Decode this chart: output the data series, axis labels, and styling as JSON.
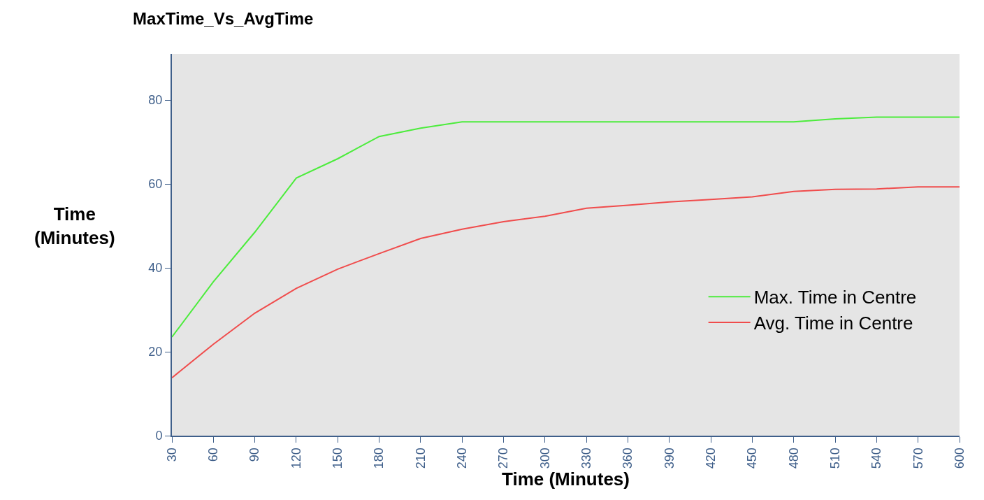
{
  "chart_data": {
    "type": "line",
    "title": "MaxTime_Vs_AvgTime",
    "xlabel": "Time (Minutes)",
    "ylabel": "Time\n(Minutes)",
    "x": [
      30,
      60,
      90,
      120,
      150,
      180,
      210,
      240,
      270,
      300,
      330,
      360,
      390,
      420,
      450,
      480,
      510,
      540,
      570,
      600
    ],
    "xlim": [
      30,
      600
    ],
    "xticks": [
      30,
      60,
      90,
      120,
      150,
      180,
      210,
      240,
      270,
      300,
      330,
      360,
      390,
      420,
      450,
      480,
      510,
      540,
      570,
      600
    ],
    "ylim": [
      0,
      91
    ],
    "yticks": [
      0,
      20,
      40,
      60,
      80
    ],
    "series": [
      {
        "name": "Max. Time in Centre",
        "color": "#4cec3c",
        "values": [
          23.5,
          36.7,
          48.5,
          61.4,
          66.0,
          71.3,
          73.3,
          74.8,
          74.8,
          74.8,
          74.8,
          74.8,
          74.8,
          74.8,
          74.8,
          74.8,
          75.5,
          75.9,
          75.9,
          75.9
        ]
      },
      {
        "name": "Avg. Time in Centre",
        "color": "#f04c4c",
        "values": [
          13.8,
          21.8,
          29.2,
          35.1,
          39.7,
          43.4,
          47.0,
          49.2,
          51.0,
          52.3,
          54.2,
          54.9,
          55.7,
          56.3,
          56.9,
          58.2,
          58.7,
          58.8,
          59.3,
          59.3
        ]
      }
    ],
    "grid": false,
    "legend": "right",
    "marker": "none",
    "line_style": "solid"
  }
}
